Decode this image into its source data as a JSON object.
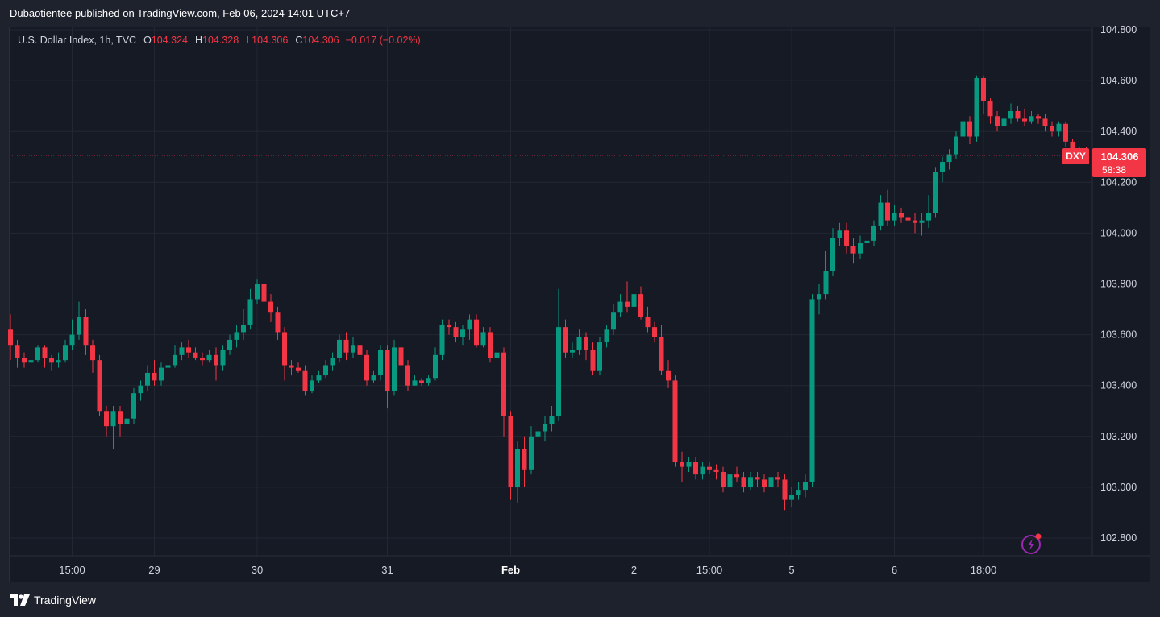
{
  "header": {
    "published": "Dubaotientee published on TradingView.com, Feb 06, 2024 14:01 UTC+7"
  },
  "legend": {
    "symbol": "U.S. Dollar Index, 1h, TVC",
    "o_label": "O",
    "o_value": "104.324",
    "h_label": "H",
    "h_value": "104.328",
    "l_label": "L",
    "l_value": "104.306",
    "c_label": "C",
    "c_value": "104.306",
    "change": "−0.017 (−0.02%)"
  },
  "price_tag": {
    "ticker": "DXY",
    "price": "104.306",
    "countdown": "58:38"
  },
  "footer": {
    "brand": "TradingView"
  },
  "colors": {
    "up": "#089981",
    "down": "#f23645",
    "background": "#161a25",
    "grid": "#232733"
  },
  "chart_data": {
    "type": "candlestick",
    "title": "U.S. Dollar Index, 1h, TVC",
    "ylim": [
      102.7,
      104.82
    ],
    "y_ticks": [
      "104.800",
      "104.600",
      "104.400",
      "104.200",
      "104.000",
      "103.800",
      "103.600",
      "103.400",
      "103.200",
      "103.000",
      "102.800"
    ],
    "x_ticks": [
      {
        "label": "15:00",
        "index": 9
      },
      {
        "label": "29",
        "index": 21
      },
      {
        "label": "30",
        "index": 36
      },
      {
        "label": "31",
        "index": 55
      },
      {
        "label": "Feb",
        "index": 73,
        "bold": true
      },
      {
        "label": "2",
        "index": 91
      },
      {
        "label": "15:00",
        "index": 102
      },
      {
        "label": "5",
        "index": 114
      },
      {
        "label": "6",
        "index": 129
      },
      {
        "label": "18:00",
        "index": 142
      }
    ],
    "last_price": 104.306,
    "candles": [
      [
        103.62,
        103.56,
        103.68,
        103.5
      ],
      [
        103.56,
        103.51,
        103.58,
        103.47
      ],
      [
        103.51,
        103.49,
        103.53,
        103.47
      ],
      [
        103.49,
        103.5,
        103.55,
        103.48
      ],
      [
        103.5,
        103.55,
        103.56,
        103.49
      ],
      [
        103.55,
        103.51,
        103.56,
        103.47
      ],
      [
        103.51,
        103.49,
        103.52,
        103.46
      ],
      [
        103.49,
        103.5,
        103.53,
        103.47
      ],
      [
        103.5,
        103.56,
        103.58,
        103.49
      ],
      [
        103.56,
        103.6,
        103.66,
        103.54
      ],
      [
        103.6,
        103.67,
        103.73,
        103.58
      ],
      [
        103.67,
        103.56,
        103.7,
        103.52
      ],
      [
        103.56,
        103.5,
        103.58,
        103.45
      ],
      [
        103.5,
        103.3,
        103.52,
        103.28
      ],
      [
        103.3,
        103.24,
        103.32,
        103.2
      ],
      [
        103.24,
        103.3,
        103.32,
        103.15
      ],
      [
        103.3,
        103.25,
        103.32,
        103.2
      ],
      [
        103.25,
        103.27,
        103.3,
        103.18
      ],
      [
        103.27,
        103.37,
        103.39,
        103.25
      ],
      [
        103.37,
        103.4,
        103.42,
        103.34
      ],
      [
        103.4,
        103.45,
        103.48,
        103.38
      ],
      [
        103.45,
        103.42,
        103.5,
        103.4
      ],
      [
        103.42,
        103.47,
        103.49,
        103.4
      ],
      [
        103.47,
        103.48,
        103.5,
        103.46
      ],
      [
        103.48,
        103.52,
        103.56,
        103.47
      ],
      [
        103.52,
        103.55,
        103.57,
        103.5
      ],
      [
        103.55,
        103.53,
        103.58,
        103.51
      ],
      [
        103.53,
        103.51,
        103.55,
        103.5
      ],
      [
        103.51,
        103.5,
        103.53,
        103.48
      ],
      [
        103.5,
        103.52,
        103.54,
        103.49
      ],
      [
        103.52,
        103.48,
        103.55,
        103.42
      ],
      [
        103.48,
        103.54,
        103.56,
        103.46
      ],
      [
        103.54,
        103.58,
        103.6,
        103.52
      ],
      [
        103.58,
        103.61,
        103.64,
        103.55
      ],
      [
        103.61,
        103.64,
        103.7,
        103.58
      ],
      [
        103.64,
        103.74,
        103.78,
        103.62
      ],
      [
        103.74,
        103.8,
        103.82,
        103.72
      ],
      [
        103.8,
        103.73,
        103.81,
        103.7
      ],
      [
        103.73,
        103.69,
        103.76,
        103.65
      ],
      [
        103.69,
        103.61,
        103.71,
        103.58
      ],
      [
        103.61,
        103.48,
        103.63,
        103.42
      ],
      [
        103.48,
        103.47,
        103.5,
        103.44
      ],
      [
        103.47,
        103.46,
        103.49,
        103.45
      ],
      [
        103.46,
        103.38,
        103.48,
        103.36
      ],
      [
        103.38,
        103.42,
        103.44,
        103.37
      ],
      [
        103.42,
        103.44,
        103.46,
        103.41
      ],
      [
        103.44,
        103.48,
        103.5,
        103.43
      ],
      [
        103.48,
        103.51,
        103.53,
        103.46
      ],
      [
        103.51,
        103.58,
        103.6,
        103.49
      ],
      [
        103.58,
        103.53,
        103.61,
        103.5
      ],
      [
        103.53,
        103.56,
        103.59,
        103.51
      ],
      [
        103.56,
        103.52,
        103.58,
        103.48
      ],
      [
        103.52,
        103.42,
        103.54,
        103.4
      ],
      [
        103.42,
        103.44,
        103.46,
        103.41
      ],
      [
        103.44,
        103.54,
        103.56,
        103.42
      ],
      [
        103.54,
        103.38,
        103.56,
        103.31
      ],
      [
        103.38,
        103.55,
        103.58,
        103.36
      ],
      [
        103.55,
        103.48,
        103.57,
        103.45
      ],
      [
        103.48,
        103.4,
        103.5,
        103.38
      ],
      [
        103.4,
        103.42,
        103.44,
        103.4
      ],
      [
        103.42,
        103.41,
        103.43,
        103.4
      ],
      [
        103.41,
        103.43,
        103.44,
        103.4
      ],
      [
        103.43,
        103.52,
        103.55,
        103.42
      ],
      [
        103.52,
        103.64,
        103.66,
        103.5
      ],
      [
        103.64,
        103.63,
        103.66,
        103.6
      ],
      [
        103.63,
        103.59,
        103.65,
        103.57
      ],
      [
        103.59,
        103.62,
        103.64,
        103.56
      ],
      [
        103.62,
        103.66,
        103.68,
        103.58
      ],
      [
        103.66,
        103.56,
        103.68,
        103.55
      ],
      [
        103.56,
        103.61,
        103.63,
        103.55
      ],
      [
        103.61,
        103.51,
        103.63,
        103.49
      ],
      [
        103.51,
        103.53,
        103.56,
        103.48
      ],
      [
        103.53,
        103.28,
        103.55,
        103.2
      ],
      [
        103.28,
        103.0,
        103.3,
        102.95
      ],
      [
        103.0,
        103.15,
        103.18,
        102.94
      ],
      [
        103.15,
        103.07,
        103.2,
        103.0
      ],
      [
        103.07,
        103.2,
        103.24,
        103.05
      ],
      [
        103.2,
        103.22,
        103.26,
        103.14
      ],
      [
        103.22,
        103.25,
        103.28,
        103.18
      ],
      [
        103.25,
        103.28,
        103.32,
        103.22
      ],
      [
        103.28,
        103.63,
        103.78,
        103.26
      ],
      [
        103.63,
        103.53,
        103.66,
        103.51
      ],
      [
        103.53,
        103.54,
        103.57,
        103.51
      ],
      [
        103.54,
        103.59,
        103.62,
        103.52
      ],
      [
        103.59,
        103.54,
        103.61,
        103.5
      ],
      [
        103.54,
        103.46,
        103.57,
        103.44
      ],
      [
        103.46,
        103.57,
        103.59,
        103.44
      ],
      [
        103.57,
        103.62,
        103.64,
        103.55
      ],
      [
        103.62,
        103.69,
        103.72,
        103.6
      ],
      [
        103.69,
        103.73,
        103.76,
        103.67
      ],
      [
        103.73,
        103.71,
        103.81,
        103.69
      ],
      [
        103.71,
        103.76,
        103.79,
        103.7
      ],
      [
        103.76,
        103.67,
        103.79,
        103.66
      ],
      [
        103.67,
        103.63,
        103.71,
        103.61
      ],
      [
        103.63,
        103.59,
        103.65,
        103.57
      ],
      [
        103.59,
        103.46,
        103.64,
        103.44
      ],
      [
        103.46,
        103.42,
        103.5,
        103.39
      ],
      [
        103.42,
        103.1,
        103.44,
        103.08
      ],
      [
        103.1,
        103.08,
        103.14,
        103.02
      ],
      [
        103.08,
        103.1,
        103.12,
        103.06
      ],
      [
        103.1,
        103.05,
        103.12,
        103.03
      ],
      [
        103.05,
        103.08,
        103.1,
        103.03
      ],
      [
        103.08,
        103.07,
        103.1,
        103.05
      ],
      [
        103.07,
        103.06,
        103.09,
        103.03
      ],
      [
        103.06,
        103.0,
        103.08,
        102.98
      ],
      [
        103.0,
        103.05,
        103.07,
        102.99
      ],
      [
        103.05,
        103.04,
        103.08,
        103.02
      ],
      [
        103.04,
        103.0,
        103.06,
        102.98
      ],
      [
        103.0,
        103.04,
        103.06,
        102.99
      ],
      [
        103.04,
        103.03,
        103.06,
        103.0
      ],
      [
        103.03,
        103.0,
        103.05,
        102.98
      ],
      [
        103.0,
        103.04,
        103.06,
        102.97
      ],
      [
        103.04,
        103.03,
        103.06,
        103.0
      ],
      [
        103.03,
        102.95,
        103.05,
        102.91
      ],
      [
        102.95,
        102.97,
        103.0,
        102.92
      ],
      [
        102.97,
        102.99,
        103.02,
        102.95
      ],
      [
        102.99,
        103.02,
        103.05,
        102.96
      ],
      [
        103.02,
        103.74,
        103.76,
        103.0
      ],
      [
        103.74,
        103.76,
        103.8,
        103.68
      ],
      [
        103.76,
        103.85,
        103.93,
        103.74
      ],
      [
        103.85,
        103.98,
        104.02,
        103.83
      ],
      [
        103.98,
        104.01,
        104.04,
        103.95
      ],
      [
        104.01,
        103.95,
        104.04,
        103.92
      ],
      [
        103.95,
        103.92,
        103.98,
        103.88
      ],
      [
        103.92,
        103.96,
        103.99,
        103.9
      ],
      [
        103.96,
        103.97,
        103.99,
        103.95
      ],
      [
        103.97,
        104.03,
        104.05,
        103.95
      ],
      [
        104.03,
        104.12,
        104.15,
        104.01
      ],
      [
        104.12,
        104.05,
        104.17,
        104.03
      ],
      [
        104.05,
        104.08,
        104.11,
        104.03
      ],
      [
        104.08,
        104.06,
        104.1,
        104.04
      ],
      [
        104.06,
        104.05,
        104.08,
        104.02
      ],
      [
        104.05,
        104.04,
        104.08,
        104.0
      ],
      [
        104.04,
        104.05,
        104.08,
        103.99
      ],
      [
        104.05,
        104.08,
        104.15,
        104.02
      ],
      [
        104.08,
        104.24,
        104.26,
        104.06
      ],
      [
        104.24,
        104.28,
        104.3,
        104.2
      ],
      [
        104.28,
        104.31,
        104.33,
        104.25
      ],
      [
        104.31,
        104.38,
        104.4,
        104.29
      ],
      [
        104.38,
        104.44,
        104.47,
        104.36
      ],
      [
        104.44,
        104.38,
        104.46,
        104.35
      ],
      [
        104.38,
        104.61,
        104.62,
        104.36
      ],
      [
        104.61,
        104.52,
        104.62,
        104.47
      ],
      [
        104.52,
        104.46,
        104.53,
        104.43
      ],
      [
        104.46,
        104.42,
        104.48,
        104.4
      ],
      [
        104.42,
        104.45,
        104.48,
        104.4
      ],
      [
        104.45,
        104.48,
        104.51,
        104.43
      ],
      [
        104.48,
        104.45,
        104.5,
        104.44
      ],
      [
        104.45,
        104.44,
        104.49,
        104.42
      ],
      [
        104.44,
        104.46,
        104.48,
        104.43
      ],
      [
        104.46,
        104.45,
        104.47,
        104.43
      ],
      [
        104.45,
        104.42,
        104.47,
        104.4
      ],
      [
        104.42,
        104.4,
        104.44,
        104.38
      ],
      [
        104.4,
        104.43,
        104.44,
        104.38
      ],
      [
        104.43,
        104.36,
        104.44,
        104.34
      ],
      [
        104.36,
        104.32,
        104.37,
        104.3
      ],
      [
        104.32,
        104.33,
        104.34,
        104.31
      ],
      [
        104.33,
        104.31,
        104.34,
        104.3
      ]
    ]
  }
}
